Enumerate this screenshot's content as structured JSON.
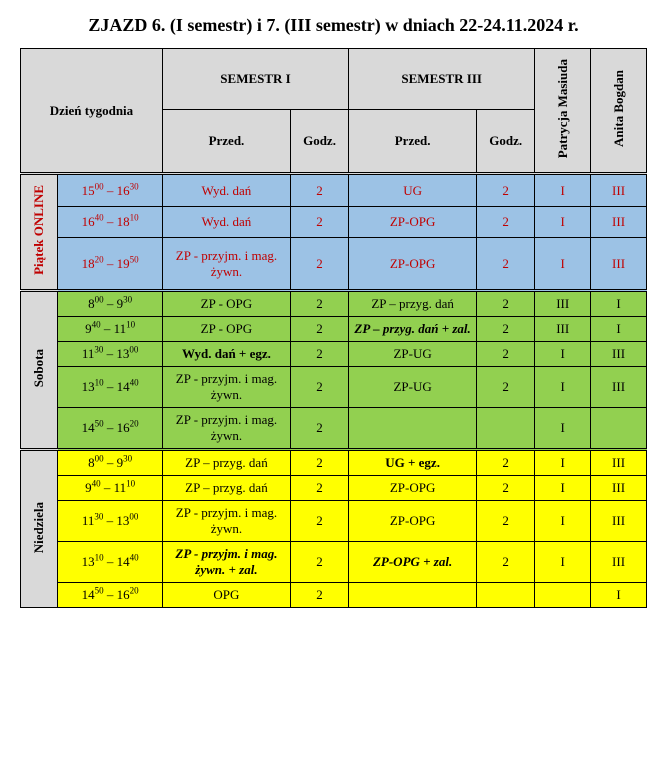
{
  "title": "ZJAZD 6. (I semestr) i 7. (III semestr) w dniach 22-24.11.2024 r.",
  "headers": {
    "day": "Dzień tygodnia",
    "sem1": "SEMESTR I",
    "sem3": "SEMESTR III",
    "przed": "Przed.",
    "godz": "Godz.",
    "t1": "Patrycja Masiuda",
    "t2": "Anita Bogdan"
  },
  "days": {
    "fri": "Piątek ONLINE",
    "sat": "Sobota",
    "sun": "Niedziela"
  },
  "rows": {
    "f1": {
      "h1": "15",
      "m1": "00",
      "h2": "16",
      "m2": "30",
      "s1": "Wyd. dań",
      "g1": "2",
      "s3": "UG",
      "g3": "2",
      "t1": "I",
      "t2": "III"
    },
    "f2": {
      "h1": "16",
      "m1": "40",
      "h2": "18",
      "m2": "10",
      "s1": "Wyd. dań",
      "g1": "2",
      "s3": "ZP-OPG",
      "g3": "2",
      "t1": "I",
      "t2": "III"
    },
    "f3": {
      "h1": "18",
      "m1": "20",
      "h2": "19",
      "m2": "50",
      "s1": "ZP - przyjm. i mag. żywn.",
      "g1": "2",
      "s3": "ZP-OPG",
      "g3": "2",
      "t1": "I",
      "t2": "III"
    },
    "s1": {
      "h1": "8",
      "m1": "00",
      "h2": "9",
      "m2": "30",
      "s1": "ZP - OPG",
      "g1": "2",
      "s3": "ZP – przyg. dań",
      "g3": "2",
      "t1": "III",
      "t2": "I"
    },
    "s2": {
      "h1": "9",
      "m1": "40",
      "h2": "11",
      "m2": "10",
      "s1": "ZP - OPG",
      "g1": "2",
      "s3": "ZP – przyg. dań + zal.",
      "g3": "2",
      "t1": "III",
      "t2": "I"
    },
    "s3": {
      "h1": "11",
      "m1": "30",
      "h2": "13",
      "m2": "00",
      "s1": "Wyd. dań + egz.",
      "g1": "2",
      "s3": "ZP-UG",
      "g3": "2",
      "t1": "I",
      "t2": "III"
    },
    "s4": {
      "h1": "13",
      "m1": "10",
      "h2": "14",
      "m2": "40",
      "s1": "ZP - przyjm. i mag. żywn.",
      "g1": "2",
      "s3": "ZP-UG",
      "g3": "2",
      "t1": "I",
      "t2": "III"
    },
    "s5": {
      "h1": "14",
      "m1": "50",
      "h2": "16",
      "m2": "20",
      "s1": "ZP - przyjm. i mag. żywn.",
      "g1": "2",
      "s3": "",
      "g3": "",
      "t1": "I",
      "t2": ""
    },
    "n1": {
      "h1": "8",
      "m1": "00",
      "h2": "9",
      "m2": "30",
      "s1": "ZP – przyg. dań",
      "g1": "2",
      "s3": "UG + egz.",
      "g3": "2",
      "t1": "I",
      "t2": "III"
    },
    "n2": {
      "h1": "9",
      "m1": "40",
      "h2": "11",
      "m2": "10",
      "s1": "ZP – przyg. dań",
      "g1": "2",
      "s3": "ZP-OPG",
      "g3": "2",
      "t1": "I",
      "t2": "III"
    },
    "n3": {
      "h1": "11",
      "m1": "30",
      "h2": "13",
      "m2": "00",
      "s1": "ZP - przyjm. i mag. żywn.",
      "g1": "2",
      "s3": "ZP-OPG",
      "g3": "2",
      "t1": "I",
      "t2": "III"
    },
    "n4": {
      "h1": "13",
      "m1": "10",
      "h2": "14",
      "m2": "40",
      "s1": "ZP - przyjm. i mag. żywn. + zal.",
      "g1": "2",
      "s3": "ZP-OPG + zal.",
      "g3": "2",
      "t1": "I",
      "t2": "III"
    },
    "n5": {
      "h1": "14",
      "m1": "50",
      "h2": "16",
      "m2": "20",
      "s1": "OPG",
      "g1": "2",
      "s3": "",
      "g3": "",
      "t1": "",
      "t2": "I"
    }
  }
}
